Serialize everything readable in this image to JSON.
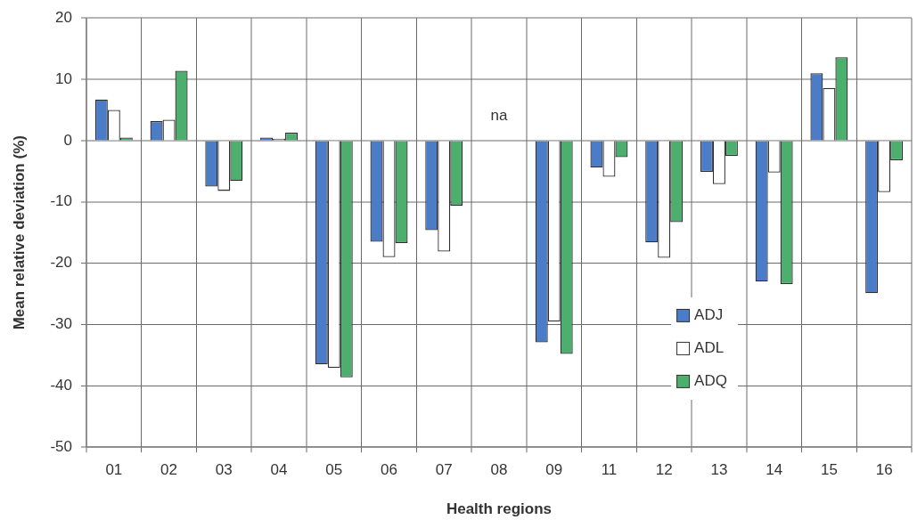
{
  "chart_data": {
    "type": "bar",
    "xlabel": "Health regions",
    "ylabel": "Mean relative deviation (%)",
    "categories": [
      "01",
      "02",
      "03",
      "04",
      "05",
      "06",
      "07",
      "08",
      "09",
      "11",
      "12",
      "13",
      "14",
      "15",
      "16"
    ],
    "series": [
      {
        "name": "ADJ",
        "color": "#4a7cc8",
        "values": [
          6.7,
          3.2,
          -7.5,
          0.5,
          -36.5,
          -16.5,
          -14.6,
          null,
          -32.9,
          -4.4,
          -16.6,
          -5.1,
          -23.0,
          11.0,
          -24.9
        ]
      },
      {
        "name": "ADL",
        "color": "#ffffff",
        "values": [
          5.0,
          3.4,
          -8.2,
          0.3,
          -37.1,
          -19.0,
          -18.1,
          null,
          -29.5,
          -5.9,
          -19.1,
          -7.1,
          -5.2,
          8.6,
          -8.4
        ]
      },
      {
        "name": "ADQ",
        "color": "#4caf6e",
        "values": [
          0.5,
          11.4,
          -6.6,
          1.3,
          -38.6,
          -16.7,
          -10.6,
          null,
          -34.8,
          -2.7,
          -13.3,
          -2.5,
          -23.4,
          13.6,
          -3.2
        ]
      }
    ],
    "ylim": [
      -50,
      20
    ],
    "yticks": [
      -50,
      -40,
      -30,
      -20,
      -10,
      0,
      10,
      20
    ],
    "annotations": [
      "na"
    ],
    "grid": true,
    "legend": "bottom right"
  }
}
